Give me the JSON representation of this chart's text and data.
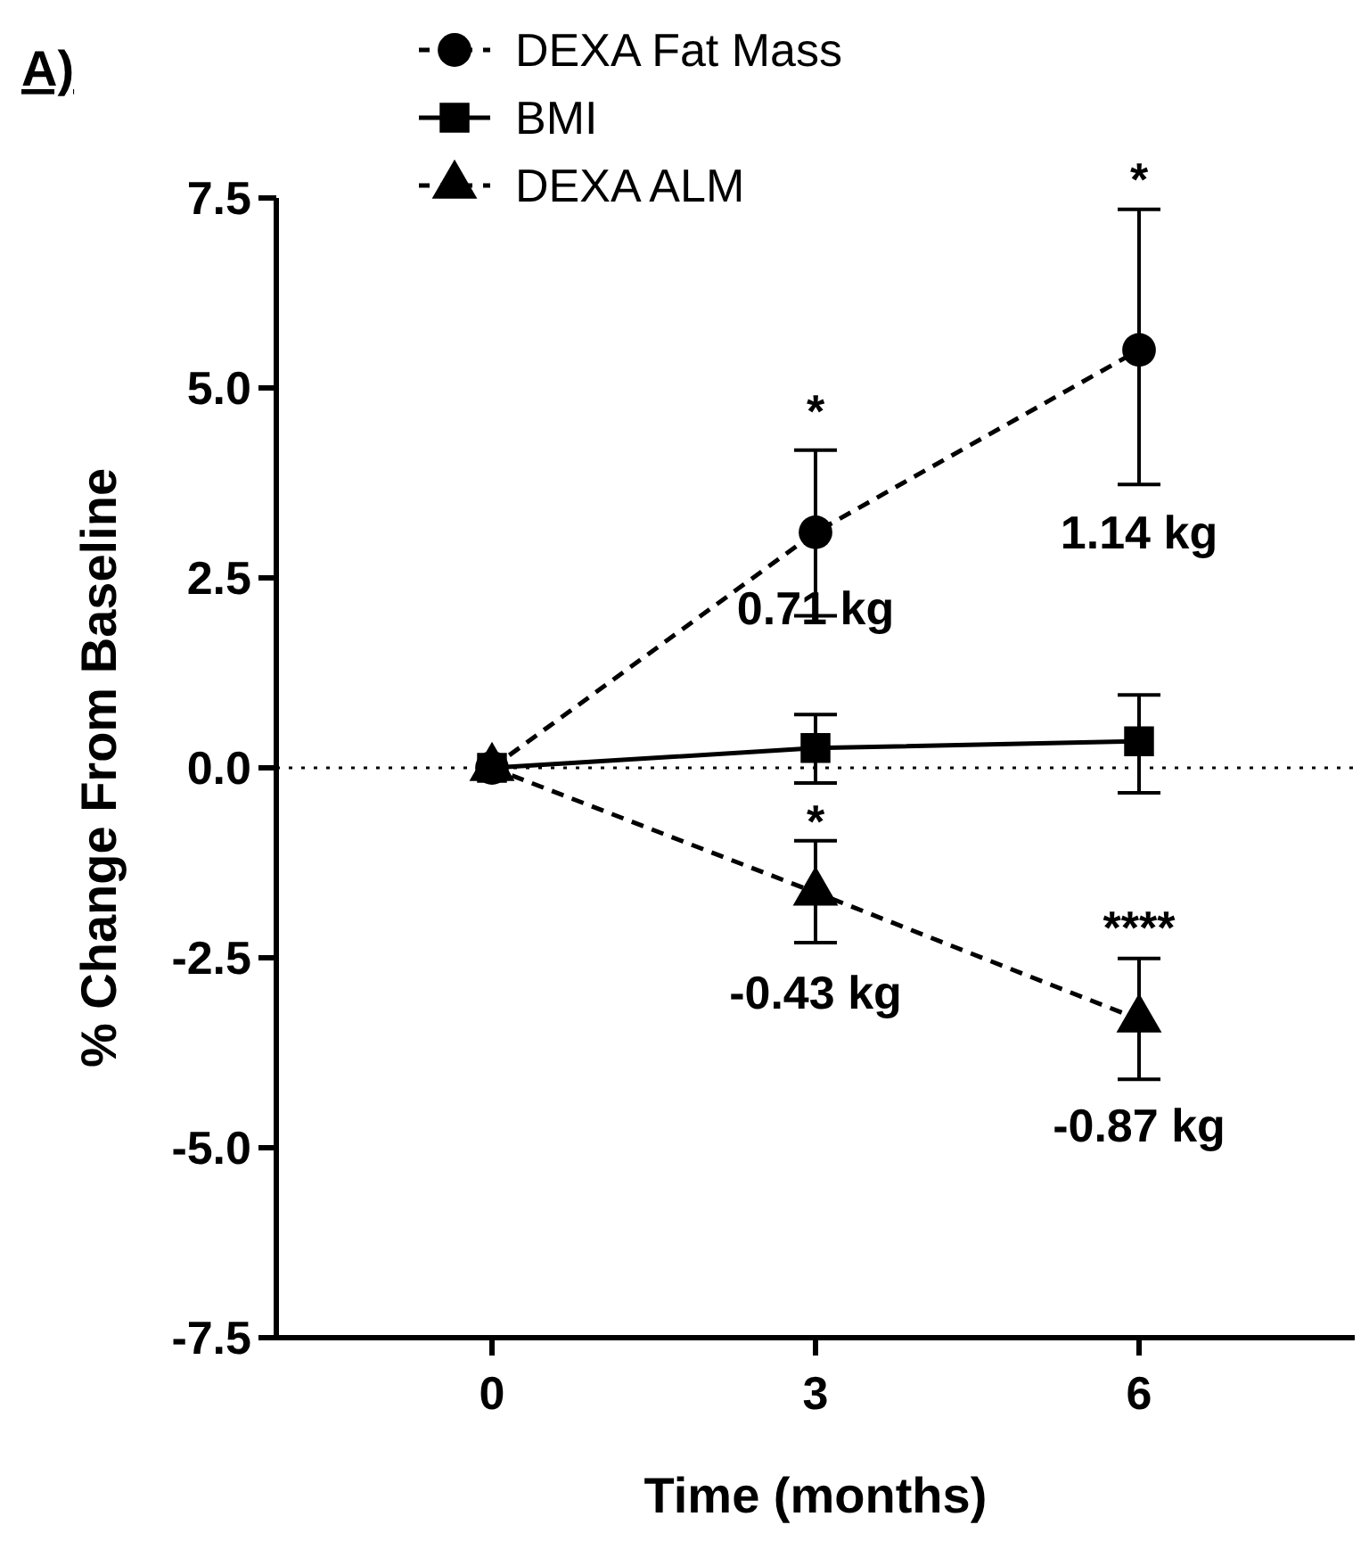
{
  "chart_data": {
    "type": "line",
    "annotations": [
      "A)",
      "*",
      "*",
      "0.71 kg",
      "1.14 kg",
      "*",
      "****",
      "-0.43 kg",
      "-0.87 kg"
    ],
    "xlabel": "Time (months)",
    "ylabel": "% Change From Baseline",
    "x": [
      0,
      3,
      6
    ],
    "series": [
      {
        "name": "DEXA Fat Mass",
        "color": "#000000",
        "values": [
          0,
          3.1,
          5.5
        ],
        "errors": [
          null,
          [
            2.0,
            4.18
          ],
          [
            3.73,
            7.35
          ]
        ],
        "marker": "circle",
        "line_style": "dashed"
      },
      {
        "name": "BMI",
        "color": "#000000",
        "values": [
          0,
          0.26,
          0.35
        ],
        "errors": [
          null,
          [
            -0.2,
            0.7
          ],
          [
            -0.33,
            0.96
          ]
        ],
        "marker": "square",
        "line_style": "solid"
      },
      {
        "name": "DEXA ALM",
        "color": "#000000",
        "values": [
          0,
          -1.64,
          -3.31
        ],
        "errors": [
          null,
          [
            -2.3,
            -0.96
          ],
          [
            -4.1,
            -2.51
          ]
        ],
        "marker": "triangle",
        "line_style": "dashed"
      }
    ],
    "xlim": [
      -2,
      8
    ],
    "xticks": [
      0,
      3,
      6
    ],
    "ylim": [
      -7.5,
      7.5
    ],
    "yticks": [
      {
        "value": -7.5,
        "label": "-7.5"
      },
      {
        "value": -5,
        "label": "-5.0"
      },
      {
        "value": -2.5,
        "label": "-2.5"
      },
      {
        "value": 0,
        "label": "0.0"
      },
      {
        "value": 2.5,
        "label": "2.5"
      },
      {
        "value": 5,
        "label": "5.0"
      },
      {
        "value": 7.5,
        "label": "7.5"
      }
    ],
    "ref_lines": [
      {
        "axis": "y",
        "value": 0,
        "label": null,
        "line_style": "dotted",
        "color": "#000000"
      }
    ],
    "grid": false,
    "legend": "top left"
  }
}
